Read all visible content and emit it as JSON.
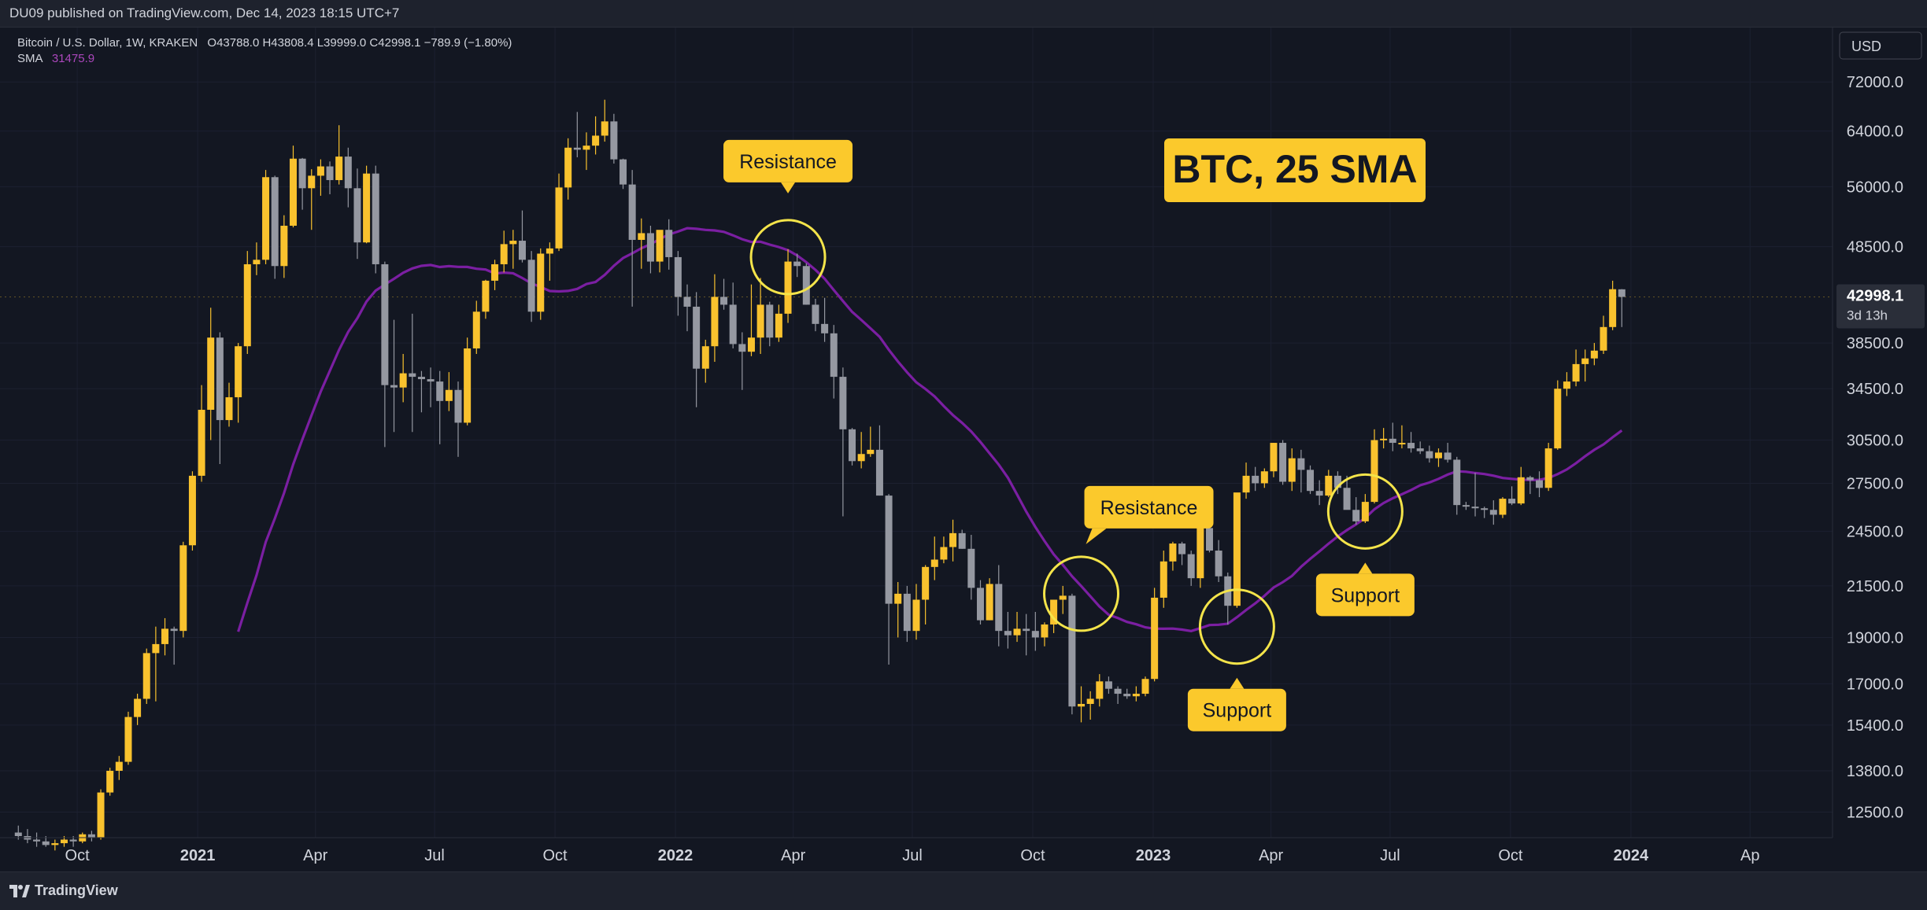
{
  "header": {
    "publish_info": "DU09 published on TradingView.com, Dec 14, 2023 18:15 UTC+7"
  },
  "legend": {
    "symbol": "Bitcoin / U.S. Dollar, 1W, KRAKEN",
    "ohlc": "O43788.0 H43808.4 L39999.0 C42998.1 −789.9 (−1.80%)",
    "sma_label": "SMA",
    "sma_value": "31475.9"
  },
  "currency_button": "USD",
  "footer": {
    "brand": "TradingView"
  },
  "chart_data": {
    "type": "candlestick",
    "title": "BTC, 25 SMA",
    "y_scale": "log",
    "y_range": [
      11800,
      79000
    ],
    "y_ticks": [
      "72000.0",
      "64000.0",
      "56000.0",
      "48500.0",
      "42998.1",
      "38500.0",
      "34500.0",
      "30500.0",
      "27500.0",
      "24500.0",
      "21500.0",
      "19000.0",
      "17000.0",
      "15400.0",
      "13800.0",
      "12500.0"
    ],
    "x_range": [
      "2020-08-03",
      "2024-06-03"
    ],
    "x_ticks": [
      {
        "label": "Oct",
        "date": "2020-10-01",
        "bold": false
      },
      {
        "label": "2021",
        "date": "2021-01-01",
        "bold": true
      },
      {
        "label": "Apr",
        "date": "2021-04-01",
        "bold": false
      },
      {
        "label": "Jul",
        "date": "2021-07-01",
        "bold": false
      },
      {
        "label": "Oct",
        "date": "2021-10-01",
        "bold": false
      },
      {
        "label": "2022",
        "date": "2022-01-01",
        "bold": true
      },
      {
        "label": "Apr",
        "date": "2022-04-01",
        "bold": false
      },
      {
        "label": "Jul",
        "date": "2022-07-01",
        "bold": false
      },
      {
        "label": "Oct",
        "date": "2022-10-01",
        "bold": false
      },
      {
        "label": "2023",
        "date": "2023-01-01",
        "bold": true
      },
      {
        "label": "Apr",
        "date": "2023-04-01",
        "bold": false
      },
      {
        "label": "Jul",
        "date": "2023-07-01",
        "bold": false
      },
      {
        "label": "Oct",
        "date": "2023-10-01",
        "bold": false
      },
      {
        "label": "2024",
        "date": "2024-01-01",
        "bold": true
      },
      {
        "label": "Ap",
        "date": "2024-04-01",
        "bold": false
      }
    ],
    "last_price": {
      "value": 42998.1,
      "label": "42998.1",
      "countdown": "3d 13h"
    },
    "colors": {
      "up": "#f9c22e",
      "down": "#9598a1",
      "sma": "#7b1fa2",
      "annotation": "#fbc92c",
      "circle": "#f4e44a"
    },
    "candles_start": "2020-08-17",
    "candles_ohlc": [
      [
        11900,
        12100,
        11700,
        11800
      ],
      [
        11800,
        12000,
        11600,
        11700
      ],
      [
        11700,
        11900,
        11500,
        11650
      ],
      [
        11650,
        11800,
        11500,
        11550
      ],
      [
        11550,
        11700,
        11400,
        11600
      ],
      [
        11600,
        11800,
        11500,
        11700
      ],
      [
        11700,
        11800,
        11500,
        11650
      ],
      [
        11650,
        11900,
        11600,
        11850
      ],
      [
        11850,
        11950,
        11650,
        11750
      ],
      [
        11750,
        13200,
        11700,
        13100
      ],
      [
        13100,
        13900,
        13000,
        13800
      ],
      [
        13800,
        14300,
        13500,
        14100
      ],
      [
        14100,
        15900,
        14000,
        15700
      ],
      [
        15700,
        16600,
        15400,
        16400
      ],
      [
        16400,
        18500,
        16200,
        18300
      ],
      [
        18300,
        19500,
        16300,
        18700
      ],
      [
        18700,
        19900,
        18200,
        19400
      ],
      [
        19400,
        19500,
        17800,
        19300
      ],
      [
        19300,
        23900,
        19000,
        23700
      ],
      [
        23700,
        28300,
        23400,
        28000
      ],
      [
        28000,
        34800,
        27600,
        32800
      ],
      [
        32800,
        41900,
        30500,
        39000
      ],
      [
        39000,
        39500,
        28800,
        32000
      ],
      [
        32000,
        35000,
        31500,
        33800
      ],
      [
        33800,
        38500,
        31800,
        38200
      ],
      [
        38200,
        48000,
        37500,
        46500
      ],
      [
        46500,
        49000,
        45300,
        47000
      ],
      [
        47000,
        58300,
        46500,
        57300
      ],
      [
        57300,
        57500,
        44900,
        46300
      ],
      [
        46300,
        52300,
        45000,
        51000
      ],
      [
        51000,
        61800,
        50800,
        59900
      ],
      [
        59900,
        60000,
        53000,
        55800
      ],
      [
        55800,
        58400,
        50500,
        57500
      ],
      [
        57500,
        59800,
        54800,
        58800
      ],
      [
        58800,
        59500,
        55000,
        56900
      ],
      [
        56900,
        64900,
        56300,
        60200
      ],
      [
        60200,
        61500,
        53300,
        55800
      ],
      [
        55800,
        58500,
        47100,
        49000
      ],
      [
        49000,
        58900,
        48900,
        57800
      ],
      [
        57800,
        58900,
        45500,
        46500
      ],
      [
        46500,
        46800,
        30000,
        34800
      ],
      [
        34800,
        40700,
        31100,
        34600
      ],
      [
        34600,
        37500,
        33400,
        35800
      ],
      [
        35800,
        41300,
        31100,
        35500
      ],
      [
        35500,
        36000,
        32600,
        35300
      ],
      [
        35300,
        36300,
        33000,
        35100
      ],
      [
        35100,
        36000,
        30200,
        33500
      ],
      [
        33500,
        35900,
        32700,
        34400
      ],
      [
        34400,
        35100,
        29300,
        31800
      ],
      [
        31800,
        39000,
        31600,
        38000
      ],
      [
        38000,
        42600,
        37500,
        41500
      ],
      [
        41500,
        44800,
        40800,
        44700
      ],
      [
        44700,
        47000,
        43700,
        46500
      ],
      [
        46500,
        50400,
        45600,
        48800
      ],
      [
        48800,
        50500,
        46000,
        49200
      ],
      [
        49200,
        52900,
        46700,
        47000
      ],
      [
        47000,
        48000,
        40500,
        41500
      ],
      [
        41500,
        48300,
        40700,
        47700
      ],
      [
        47700,
        49000,
        44700,
        48300
      ],
      [
        48300,
        57800,
        48000,
        55900
      ],
      [
        55900,
        62900,
        54300,
        61500
      ],
      [
        61500,
        67000,
        60100,
        61200
      ],
      [
        61200,
        63800,
        58300,
        61800
      ],
      [
        61800,
        66300,
        60500,
        63300
      ],
      [
        63300,
        69000,
        62400,
        65500
      ],
      [
        65500,
        66700,
        59200,
        59800
      ],
      [
        59800,
        59900,
        55700,
        56300
      ],
      [
        56300,
        58300,
        42000,
        49300
      ],
      [
        49300,
        51900,
        46000,
        50100
      ],
      [
        50100,
        51000,
        45500,
        46800
      ],
      [
        46800,
        48300,
        45600,
        50500
      ],
      [
        50500,
        51800,
        45900,
        47300
      ],
      [
        47300,
        48000,
        41100,
        43000
      ],
      [
        43000,
        44300,
        39600,
        42000
      ],
      [
        42000,
        43500,
        33000,
        36200
      ],
      [
        36200,
        38800,
        35000,
        38200
      ],
      [
        38200,
        45400,
        36800,
        43000
      ],
      [
        43000,
        44900,
        41700,
        42200
      ],
      [
        42200,
        44500,
        38000,
        38400
      ],
      [
        38400,
        39500,
        34400,
        37700
      ],
      [
        37700,
        44300,
        37300,
        39000
      ],
      [
        39000,
        45000,
        37500,
        42200
      ],
      [
        42200,
        42500,
        38200,
        39000
      ],
      [
        39000,
        42200,
        38600,
        41300
      ],
      [
        41300,
        48200,
        40400,
        46800
      ],
      [
        46800,
        47700,
        45100,
        46300
      ],
      [
        46300,
        46600,
        42200,
        42200
      ],
      [
        42200,
        42800,
        39600,
        40300
      ],
      [
        40300,
        42900,
        38600,
        39400
      ],
      [
        39400,
        40200,
        33700,
        35500
      ],
      [
        35500,
        36300,
        25400,
        31300
      ],
      [
        31300,
        31400,
        28700,
        29000
      ],
      [
        29000,
        31100,
        28500,
        29500
      ],
      [
        29500,
        31500,
        29300,
        29800
      ],
      [
        29800,
        31600,
        26700,
        26700
      ],
      [
        26700,
        26800,
        17800,
        20600
      ],
      [
        20600,
        21700,
        19000,
        21100
      ],
      [
        21100,
        21500,
        18800,
        19300
      ],
      [
        19300,
        21600,
        18900,
        20800
      ],
      [
        20800,
        22600,
        19600,
        22500
      ],
      [
        22500,
        24200,
        21800,
        22900
      ],
      [
        22900,
        24200,
        22700,
        23600
      ],
      [
        23600,
        25200,
        22800,
        24400
      ],
      [
        24400,
        24600,
        23500,
        23500
      ],
      [
        23500,
        24300,
        20800,
        21400
      ],
      [
        21400,
        21800,
        19600,
        19800
      ],
      [
        19800,
        21900,
        19800,
        21600
      ],
      [
        21600,
        22600,
        18600,
        19300
      ],
      [
        19300,
        20200,
        18500,
        19100
      ],
      [
        19100,
        20200,
        18800,
        19400
      ],
      [
        19400,
        20100,
        18200,
        19300
      ],
      [
        19300,
        20200,
        18400,
        19000
      ],
      [
        19000,
        19700,
        18600,
        19600
      ],
      [
        19600,
        20800,
        19200,
        20800
      ],
      [
        20800,
        21500,
        20100,
        21000
      ],
      [
        21000,
        21100,
        15800,
        16100
      ],
      [
        16100,
        16900,
        15500,
        16200
      ],
      [
        16200,
        16700,
        15600,
        16400
      ],
      [
        16400,
        17400,
        16100,
        17100
      ],
      [
        17100,
        17300,
        16600,
        16800
      ],
      [
        16800,
        16900,
        16200,
        16600
      ],
      [
        16600,
        16800,
        16400,
        16500
      ],
      [
        16500,
        16900,
        16300,
        16600
      ],
      [
        16600,
        17300,
        16500,
        17200
      ],
      [
        17200,
        21400,
        17100,
        20900
      ],
      [
        20900,
        23400,
        20400,
        22800
      ],
      [
        22800,
        23900,
        22300,
        23800
      ],
      [
        23800,
        23900,
        22600,
        23200
      ],
      [
        23200,
        23400,
        21500,
        21900
      ],
      [
        21900,
        24900,
        21400,
        24700
      ],
      [
        24700,
        25200,
        23300,
        23400
      ],
      [
        23400,
        24000,
        21700,
        22000
      ],
      [
        22000,
        22200,
        19600,
        20500
      ],
      [
        20500,
        26500,
        20400,
        26900
      ],
      [
        26900,
        28900,
        26500,
        28000
      ],
      [
        28000,
        28600,
        27000,
        27500
      ],
      [
        27500,
        28500,
        27200,
        28300
      ],
      [
        28300,
        30300,
        27900,
        30300
      ],
      [
        30300,
        30500,
        27400,
        27600
      ],
      [
        27600,
        29900,
        27000,
        29200
      ],
      [
        29200,
        29800,
        26900,
        28400
      ],
      [
        28400,
        28700,
        26800,
        27000
      ],
      [
        27000,
        27700,
        26100,
        26700
      ],
      [
        26700,
        28400,
        26600,
        28000
      ],
      [
        28000,
        28300,
        26800,
        27200
      ],
      [
        27200,
        28000,
        25900,
        25800
      ],
      [
        25800,
        26600,
        24900,
        25100
      ],
      [
        25100,
        26800,
        25000,
        26300
      ],
      [
        26300,
        31300,
        26200,
        30500
      ],
      [
        30500,
        31400,
        29900,
        30600
      ],
      [
        30600,
        31800,
        29700,
        30300
      ],
      [
        30300,
        31600,
        29900,
        30300
      ],
      [
        30300,
        31100,
        29600,
        29900
      ],
      [
        29900,
        30400,
        29500,
        29700
      ],
      [
        29700,
        30100,
        28900,
        29200
      ],
      [
        29200,
        29900,
        28600,
        29600
      ],
      [
        29600,
        30300,
        28900,
        29100
      ],
      [
        29100,
        29300,
        25500,
        26100
      ],
      [
        26100,
        26300,
        25800,
        26000
      ],
      [
        26000,
        28200,
        25400,
        25900
      ],
      [
        25900,
        26000,
        25300,
        25800
      ],
      [
        25800,
        26400,
        24900,
        25500
      ],
      [
        25500,
        26600,
        25300,
        26500
      ],
      [
        26500,
        27300,
        26100,
        26200
      ],
      [
        26200,
        28600,
        26100,
        27900
      ],
      [
        27900,
        28000,
        26800,
        27700
      ],
      [
        27700,
        28300,
        26600,
        27200
      ],
      [
        27200,
        30300,
        27000,
        29900
      ],
      [
        29900,
        35200,
        29800,
        34500
      ],
      [
        34500,
        35900,
        33900,
        35100
      ],
      [
        35100,
        37900,
        34700,
        36600
      ],
      [
        36600,
        37900,
        35100,
        37100
      ],
      [
        37100,
        38500,
        36500,
        37800
      ],
      [
        37800,
        41100,
        37500,
        40000
      ],
      [
        40000,
        44700,
        39700,
        43800
      ],
      [
        43788,
        43808.4,
        39999,
        42998.1
      ]
    ],
    "sma_period": 25,
    "sma_last_value": 31475.9,
    "annotations": [
      {
        "label": "Resistance",
        "date": "2022-03-28",
        "price": 47300
      },
      {
        "label": "Resistance",
        "date": "2022-11-07",
        "price": 21100
      },
      {
        "label": "Support",
        "date": "2023-03-06",
        "price": 19500
      },
      {
        "label": "Support",
        "date": "2023-06-12",
        "price": 25700
      }
    ]
  }
}
